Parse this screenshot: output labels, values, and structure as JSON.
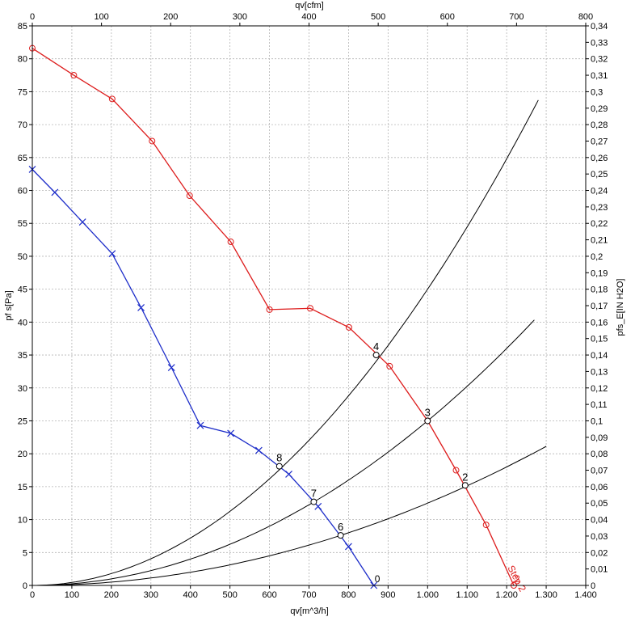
{
  "chart_data": {
    "type": "line",
    "xlabel": "qv[m^3/h]",
    "x2label": "qv[cfm]",
    "ylabel": "pf s[Pa]",
    "y2label": "pfs_E[IN H2O]",
    "xlim": [
      0,
      1400
    ],
    "ylim": [
      0,
      85
    ],
    "x2lim": [
      0,
      800
    ],
    "y2lim": [
      0,
      0.34
    ],
    "x_ticks": [
      "0",
      "100",
      "200",
      "300",
      "400",
      "500",
      "600",
      "700",
      "800",
      "900",
      "1.000",
      "1.100",
      "1.200",
      "1.300",
      "1.400"
    ],
    "y_ticks": [
      "0",
      "5",
      "10",
      "15",
      "20",
      "25",
      "30",
      "35",
      "40",
      "45",
      "50",
      "55",
      "60",
      "65",
      "70",
      "75",
      "80",
      "85"
    ],
    "x2_ticks": [
      "0",
      "100",
      "200",
      "300",
      "400",
      "500",
      "600",
      "700",
      "800"
    ],
    "y2_ticks": [
      "0",
      "0,01",
      "0,02",
      "0,03",
      "0,04",
      "0,05",
      "0,06",
      "0,07",
      "0,08",
      "0,09",
      "0,1",
      "0,11",
      "0,12",
      "0,13",
      "0,14",
      "0,15",
      "0,16",
      "0,17",
      "0,18",
      "0,19",
      "0,2",
      "0,21",
      "0,22",
      "0,23",
      "0,24",
      "0,25",
      "0,26",
      "0,27",
      "0,28",
      "0,29",
      "0,3",
      "0,31",
      "0,32",
      "0,33",
      "0,34"
    ],
    "grid": true,
    "series": [
      {
        "name": "Step 2",
        "color": "#dd1c1c",
        "marker": "circle",
        "end_label": "2",
        "points": [
          [
            0,
            81.6
          ],
          [
            105,
            77.5
          ],
          [
            202,
            73.9
          ],
          [
            303,
            67.5
          ],
          [
            398,
            59.2
          ],
          [
            502,
            52.2
          ],
          [
            600,
            41.9
          ],
          [
            703,
            42.1
          ],
          [
            801,
            39.2
          ],
          [
            904,
            33.3
          ],
          [
            1000,
            25.0
          ],
          [
            1072,
            17.5
          ],
          [
            1148,
            9.2
          ],
          [
            1218,
            0
          ]
        ]
      },
      {
        "name": "",
        "color": "#1d2dc9",
        "marker": "x",
        "end_label": "0",
        "points": [
          [
            0,
            63.2
          ],
          [
            57,
            59.7
          ],
          [
            127,
            55.2
          ],
          [
            202,
            50.4
          ],
          [
            275,
            42.2
          ],
          [
            352,
            33.1
          ],
          [
            425,
            24.3
          ],
          [
            502,
            23.1
          ],
          [
            573,
            20.5
          ],
          [
            649,
            16.9
          ],
          [
            723,
            12.0
          ],
          [
            800,
            5.9
          ],
          [
            864,
            0
          ]
        ]
      }
    ],
    "system_curves": [
      {
        "k": 4.5e-05,
        "x_max": 1285
      },
      {
        "k": 2.5e-05,
        "x_max": 1276
      },
      {
        "k": 1.25e-05,
        "x_max": 1300
      }
    ],
    "operating_points": [
      {
        "label": "4",
        "x": 870,
        "y": 35.0
      },
      {
        "label": "3",
        "x": 1000,
        "y": 25.0
      },
      {
        "label": "2",
        "x": 1095,
        "y": 15.2
      },
      {
        "label": "8",
        "x": 625,
        "y": 18.1
      },
      {
        "label": "7",
        "x": 712,
        "y": 12.7
      },
      {
        "label": "6",
        "x": 780,
        "y": 7.6
      }
    ]
  }
}
